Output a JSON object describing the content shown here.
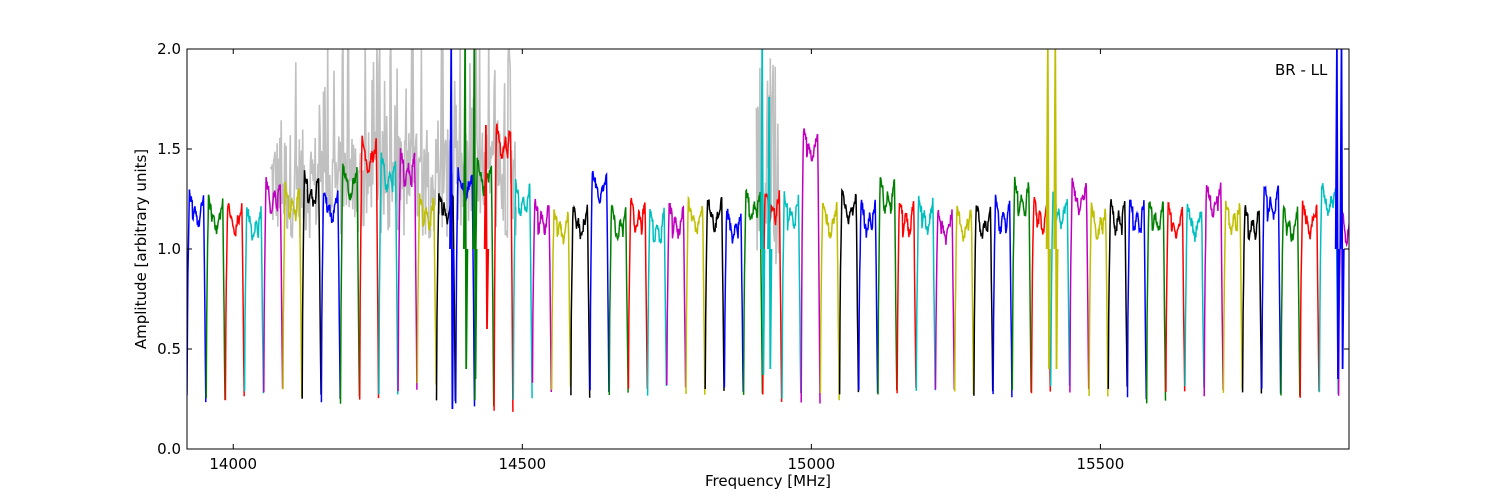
{
  "chart_data": {
    "type": "line",
    "xlabel": "Frequency [MHz]",
    "ylabel": "Amplitude [arbitrary units]",
    "annotation": "BR - LL",
    "xlim": [
      13920,
      15930
    ],
    "ylim": [
      0.0,
      2.0
    ],
    "grid": false,
    "xticks": [
      14000,
      14500,
      15000,
      15500
    ],
    "yticks": [
      0.0,
      0.5,
      1.0,
      1.5,
      2.0
    ],
    "xtick_labels": [
      "14000",
      "14500",
      "15000",
      "15500"
    ],
    "ytick_labels": [
      "0.0",
      "0.5",
      "1.0",
      "1.5",
      "2.0"
    ],
    "colors": [
      "#0000ff",
      "#008000",
      "#ff0000",
      "#00bfbf",
      "#bf00bf",
      "#bfbf00",
      "#000000"
    ],
    "background_series_color": "#c0c0c0",
    "channel": {
      "start_mhz": 13920,
      "width_mhz": 33.2,
      "count": 61,
      "peak_levels": [
        1.28,
        1.25,
        1.23,
        1.21,
        1.35,
        1.32,
        1.38,
        1.3,
        1.42,
        1.55,
        1.46,
        1.49,
        1.27,
        1.29,
        1.4,
        1.45,
        1.62,
        1.33,
        1.25,
        1.2,
        1.22,
        1.4,
        1.21,
        1.25,
        1.2,
        1.23,
        1.24,
        1.26,
        1.2,
        1.3,
        1.3,
        1.27,
        1.6,
        1.23,
        1.29,
        1.24,
        1.35,
        1.24,
        1.25,
        1.2,
        1.21,
        1.22,
        1.25,
        1.34,
        1.25,
        1.27,
        1.34,
        1.22,
        1.25,
        1.25,
        1.25,
        1.22,
        1.22,
        1.33,
        1.24,
        1.22,
        1.32,
        1.21,
        1.23,
        1.33,
        1.2
      ],
      "trough_levels": [
        0.25,
        0.26,
        0.25,
        0.3,
        0.29,
        0.28,
        0.25,
        0.25,
        0.24,
        0.27,
        0.29,
        0.28,
        0.31,
        0.25,
        0.21,
        0.22,
        0.21,
        0.23,
        0.31,
        0.3,
        0.28,
        0.3,
        0.28,
        0.3,
        0.29,
        0.3,
        0.28,
        0.31,
        0.29,
        0.27,
        0.25,
        0.26,
        0.25,
        0.26,
        0.28,
        0.3,
        0.27,
        0.28,
        0.29,
        0.28,
        0.29,
        0.28,
        0.28,
        0.28,
        0.29,
        0.29,
        0.3,
        0.28,
        0.3,
        0.24,
        0.25,
        0.27,
        0.3,
        0.28,
        0.28,
        0.3,
        0.28,
        0.27,
        0.28,
        0.27,
        0.29
      ]
    },
    "spikes": [
      {
        "x": 14378,
        "ymin": 0.2,
        "ymax": 2.0,
        "color": "#0000ff"
      },
      {
        "x": 14402,
        "ymin": 0.4,
        "ymax": 2.0,
        "color": "#008000"
      },
      {
        "x": 14418,
        "ymin": 0.35,
        "ymax": 2.0,
        "color": "#008000"
      },
      {
        "x": 14438,
        "ymin": 0.6,
        "ymax": 1.62,
        "color": "#ff0000"
      },
      {
        "x": 14916,
        "ymin": 0.37,
        "ymax": 2.0,
        "color": "#00bfbf"
      },
      {
        "x": 14928,
        "ymin": 0.4,
        "ymax": 1.76,
        "color": "#00bfbf"
      },
      {
        "x": 15410,
        "ymin": 0.4,
        "ymax": 2.0,
        "color": "#bfbf00"
      },
      {
        "x": 15423,
        "ymin": 0.4,
        "ymax": 2.0,
        "color": "#bfbf00"
      },
      {
        "x": 15910,
        "ymin": 0.35,
        "ymax": 2.0,
        "color": "#0000ff"
      },
      {
        "x": 15918,
        "ymin": 0.4,
        "ymax": 2.0,
        "color": "#0000ff"
      }
    ],
    "background_region": {
      "x_start": 14065,
      "x_end": 14490,
      "y_max": 2.0
    },
    "background_region_2": {
      "x_start": 14905,
      "x_end": 14945,
      "y_max": 2.0
    }
  }
}
